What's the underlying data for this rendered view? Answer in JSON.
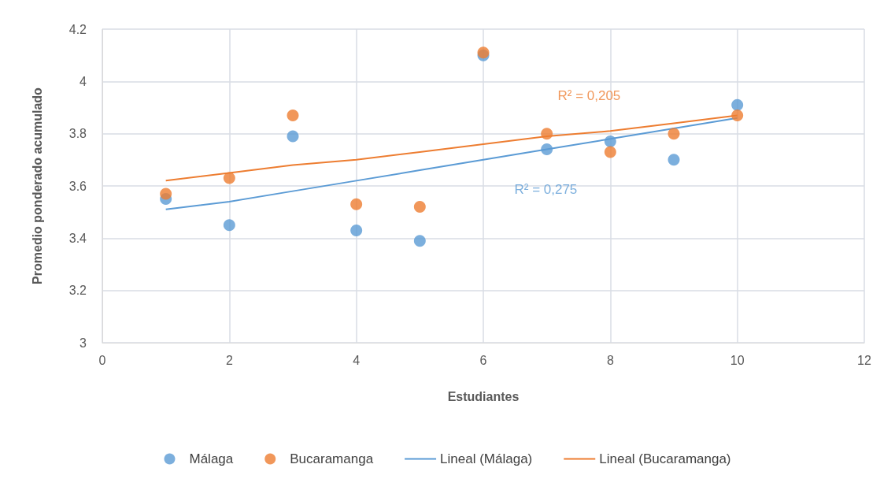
{
  "chart_data": {
    "type": "scatter",
    "xlabel": "Estudiantes",
    "ylabel": "Promedio ponderado acumulado",
    "x": [
      1,
      2,
      3,
      4,
      5,
      6,
      7,
      8,
      9,
      10
    ],
    "series": [
      {
        "name": "Málaga",
        "color": "#5b9bd5",
        "values": [
          3.55,
          3.45,
          3.79,
          3.43,
          3.39,
          4.1,
          3.74,
          3.77,
          3.7,
          3.91
        ]
      },
      {
        "name": "Bucaramanga",
        "color": "#ed7d31",
        "values": [
          3.57,
          3.63,
          3.87,
          3.53,
          3.52,
          4.11,
          3.8,
          3.73,
          3.8,
          3.87
        ]
      },
      {
        "name": "Lineal (Málaga)",
        "type": "line",
        "marker": "none",
        "color": "#5b9bd5",
        "values": [
          3.51,
          3.54,
          3.58,
          3.62,
          3.66,
          3.7,
          3.74,
          3.78,
          3.82,
          3.86
        ]
      },
      {
        "name": "Lineal (Bucaramanga)",
        "type": "line",
        "marker": "none",
        "color": "#ed7d31",
        "values": [
          3.62,
          3.65,
          3.68,
          3.7,
          3.73,
          3.76,
          3.79,
          3.81,
          3.84,
          3.87
        ]
      }
    ],
    "annotations": [
      "R² = 0,275",
      "R² = 0,205"
    ],
    "xlim": [
      0,
      12
    ],
    "xticks": [
      0,
      2,
      4,
      6,
      8,
      10,
      12
    ],
    "ylim": [
      3,
      4.2
    ],
    "yticks": [
      3,
      3.2,
      3.4,
      3.6,
      3.8,
      4,
      4.2
    ],
    "grid": true,
    "legend": "bottom",
    "marker": "circle",
    "line_style": "solid"
  }
}
